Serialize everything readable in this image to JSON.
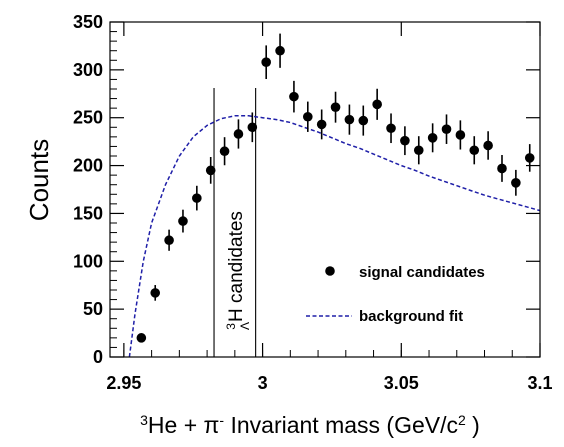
{
  "chart_data": {
    "type": "scatter",
    "title": "",
    "xlabel": {
      "iso_sup": "3",
      "main": "He + π",
      "pi_sup": "-",
      "tail": " Invariant mass (GeV/c",
      "unit_sup": "2",
      "close": " )"
    },
    "ylabel": "Counts",
    "xlim": [
      2.945,
      3.1
    ],
    "ylim": [
      0,
      350
    ],
    "x_ticks": [
      2.95,
      3.0,
      3.05,
      3.1
    ],
    "x_tick_labels": [
      "2.95",
      "3",
      "3.05",
      "3.1"
    ],
    "y_ticks": [
      0,
      50,
      100,
      150,
      200,
      250,
      300,
      350
    ],
    "y_tick_labels": [
      "0",
      "50",
      "100",
      "150",
      "200",
      "250",
      "300",
      "350"
    ],
    "bin_width": 0.0025,
    "series": [
      {
        "name": "signal candidates",
        "marker": "filled-circle",
        "error_bars": "sqrt(N)",
        "x": [
          2.9513,
          2.9538,
          2.9563,
          2.9588,
          2.9613,
          2.9638,
          2.9663,
          2.9688,
          2.9713,
          2.9738,
          2.9763,
          2.9788,
          2.9813,
          2.9838,
          2.9863,
          2.9888,
          2.9913,
          2.9938,
          2.9963,
          2.9988,
          3.0013,
          3.0038,
          3.0063,
          3.0088,
          3.0113,
          3.0138,
          3.0163,
          3.0188,
          3.0213,
          3.0238,
          3.0263,
          3.0288,
          3.0313,
          3.0338,
          3.0363,
          3.0388,
          3.0413,
          3.0438,
          3.0463,
          3.0488,
          3.0513,
          3.0538,
          3.0563,
          3.0588,
          3.0613,
          3.0638,
          3.0663,
          3.0688,
          3.0713,
          3.0738,
          3.0763,
          3.0788,
          3.0813,
          3.0838,
          3.0863,
          3.0888,
          3.0913,
          3.0938,
          3.0963,
          3.0988
        ],
        "values": [
          0,
          0,
          20,
          0,
          67,
          0,
          122,
          0,
          142,
          0,
          166,
          0,
          195,
          0,
          215,
          0,
          233,
          0,
          240,
          0,
          308,
          0,
          320,
          0,
          272,
          0,
          251,
          0,
          243,
          0,
          261,
          0,
          248,
          0,
          247,
          0,
          264,
          0,
          239,
          0,
          226,
          0,
          216,
          0,
          229,
          0,
          238,
          0,
          232,
          0,
          216,
          0,
          221,
          0,
          197,
          0,
          182,
          0,
          208,
          0
        ]
      },
      {
        "name": "background fit",
        "style": "dashed",
        "color": "#1f1fa8",
        "x": [
          2.952,
          2.954,
          2.957,
          2.96,
          2.965,
          2.97,
          2.975,
          2.98,
          2.985,
          2.99,
          2.995,
          3.0,
          3.005,
          3.01,
          3.015,
          3.02,
          3.025,
          3.03,
          3.035,
          3.04,
          3.045,
          3.05,
          3.055,
          3.06,
          3.065,
          3.07,
          3.075,
          3.08,
          3.085,
          3.09,
          3.095,
          3.1
        ],
        "values": [
          0,
          45,
          100,
          140,
          180,
          210,
          230,
          242,
          249,
          252,
          252,
          250,
          248,
          245,
          240,
          235,
          229,
          223,
          218,
          212,
          206,
          200,
          195,
          189,
          184,
          179,
          174,
          169,
          165,
          161,
          157,
          153
        ]
      }
    ],
    "signal_window": {
      "x": [
        2.9825,
        2.9975
      ],
      "label": {
        "sup": "3",
        "sub": "Λ",
        "text": "H candidates"
      }
    },
    "legend": {
      "placement": "right",
      "entries": [
        {
          "label": "signal candidates",
          "marker": "filled-circle"
        },
        {
          "label": "background fit",
          "marker": "dashed-line"
        }
      ]
    },
    "colors": {
      "axis": "#000000",
      "points": "#000000",
      "fit": "#1f1fa8",
      "window": "#000000"
    }
  }
}
